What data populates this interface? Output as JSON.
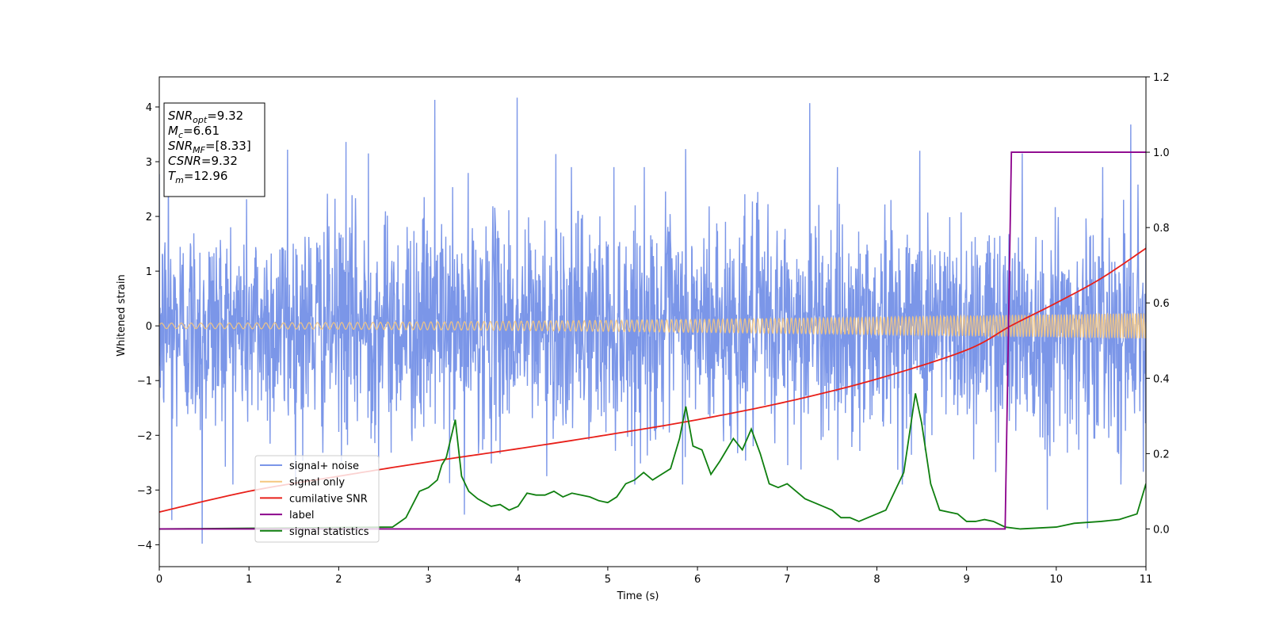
{
  "chart_data": {
    "type": "line",
    "xlabel": "Time (s)",
    "ylabel": "Whitened strain",
    "xlim": [
      0,
      11
    ],
    "ylim": [
      -4.4,
      4.55
    ],
    "y2lim": [
      -0.1,
      1.2
    ],
    "x_ticks": [
      "0",
      "1",
      "2",
      "3",
      "4",
      "5",
      "6",
      "7",
      "8",
      "9",
      "10",
      "11"
    ],
    "y_ticks": [
      "−4",
      "−3",
      "−2",
      "−1",
      "0",
      "1",
      "2",
      "3",
      "4"
    ],
    "y2_ticks": [
      "0.0",
      "0.2",
      "0.4",
      "0.6",
      "0.8",
      "1.0",
      "1.2"
    ],
    "legend_position": "lower-left",
    "annotation": [
      {
        "main": "SNR",
        "sub": "opt",
        "rest": "=9.32"
      },
      {
        "main": "M",
        "sub": "c",
        "rest": "=6.61"
      },
      {
        "main": "SNR",
        "sub": "MF",
        "rest": "=[8.33]"
      },
      {
        "main": "CSNR",
        "sub": "",
        "rest": "=9.32"
      },
      {
        "main": "T",
        "sub": "m",
        "rest": "=12.96"
      }
    ],
    "series": [
      {
        "name": "signal+ noise",
        "axis": "left",
        "color": "#7b96e8",
        "kind": "noise",
        "envelope_sd": 1.0,
        "peaks": [
          [
            0.48,
            -3.98
          ],
          [
            3.07,
            4.13
          ],
          [
            3.99,
            4.17
          ],
          [
            7.25,
            4.07
          ],
          [
            10.83,
            3.68
          ],
          [
            0.1,
            3.28
          ],
          [
            1.43,
            3.22
          ],
          [
            2.08,
            3.36
          ],
          [
            2.33,
            3.15
          ],
          [
            4.42,
            3.14
          ],
          [
            5.87,
            3.23
          ],
          [
            8.48,
            3.2
          ],
          [
            9.62,
            3.15
          ],
          [
            0.14,
            -3.55
          ],
          [
            9.9,
            -3.36
          ],
          [
            10.35,
            -3.7
          ],
          [
            3.4,
            -3.45
          ]
        ]
      },
      {
        "name": "signal only",
        "axis": "left",
        "color": "#f5c77f",
        "kind": "chirp",
        "amp_start": 0.05,
        "amp_end": 0.23
      },
      {
        "name": "cumilative SNR",
        "axis": "right",
        "color": "#e8201a",
        "x": [
          0,
          1,
          2,
          3,
          4,
          5,
          6,
          7,
          8,
          9,
          9.5,
          10,
          10.5,
          11
        ],
        "y": [
          0.045,
          0.1,
          0.14,
          0.178,
          0.213,
          0.25,
          0.29,
          0.338,
          0.398,
          0.475,
          0.54,
          0.6,
          0.665,
          0.745
        ]
      },
      {
        "name": "label",
        "axis": "right",
        "color": "#8b008b",
        "x": [
          0,
          9.43,
          9.5,
          11
        ],
        "y": [
          0,
          0,
          1,
          1
        ]
      },
      {
        "name": "signal statistics",
        "axis": "right",
        "color": "#0f7f0f",
        "x": [
          0,
          2.6,
          2.75,
          2.9,
          3.0,
          3.1,
          3.15,
          3.2,
          3.3,
          3.37,
          3.45,
          3.55,
          3.7,
          3.8,
          3.9,
          4.0,
          4.1,
          4.2,
          4.3,
          4.4,
          4.5,
          4.6,
          4.7,
          4.8,
          4.9,
          5.0,
          5.1,
          5.2,
          5.3,
          5.4,
          5.5,
          5.6,
          5.7,
          5.8,
          5.87,
          5.95,
          6.05,
          6.15,
          6.25,
          6.3,
          6.4,
          6.5,
          6.6,
          6.7,
          6.8,
          6.9,
          7.0,
          7.1,
          7.2,
          7.3,
          7.4,
          7.5,
          7.6,
          7.7,
          7.8,
          7.9,
          8.0,
          8.1,
          8.2,
          8.3,
          8.43,
          8.5,
          8.6,
          8.7,
          8.8,
          8.9,
          9.0,
          9.1,
          9.2,
          9.3,
          9.43,
          9.6,
          10.0,
          10.2,
          10.5,
          10.7,
          10.9,
          11.0
        ],
        "y": [
          0.0,
          0.005,
          0.03,
          0.1,
          0.11,
          0.13,
          0.17,
          0.19,
          0.29,
          0.14,
          0.1,
          0.08,
          0.06,
          0.065,
          0.05,
          0.06,
          0.095,
          0.09,
          0.09,
          0.1,
          0.085,
          0.095,
          0.09,
          0.085,
          0.075,
          0.07,
          0.085,
          0.12,
          0.13,
          0.15,
          0.13,
          0.145,
          0.16,
          0.24,
          0.325,
          0.22,
          0.21,
          0.145,
          0.18,
          0.2,
          0.24,
          0.21,
          0.265,
          0.2,
          0.12,
          0.11,
          0.12,
          0.1,
          0.08,
          0.07,
          0.06,
          0.05,
          0.03,
          0.03,
          0.02,
          0.03,
          0.04,
          0.05,
          0.1,
          0.15,
          0.36,
          0.28,
          0.12,
          0.05,
          0.045,
          0.04,
          0.02,
          0.02,
          0.025,
          0.02,
          0.005,
          0.0,
          0.005,
          0.015,
          0.02,
          0.025,
          0.04,
          0.12
        ]
      }
    ]
  }
}
